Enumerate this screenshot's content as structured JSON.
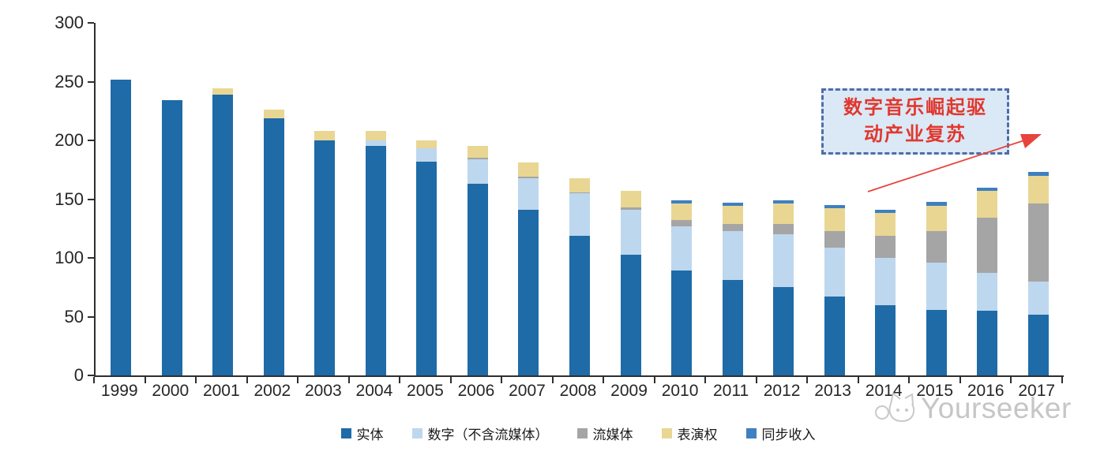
{
  "chart_data": {
    "type": "bar",
    "stacked": true,
    "title": "",
    "xlabel": "",
    "ylabel": "",
    "categories": [
      "1999",
      "2000",
      "2001",
      "2002",
      "2003",
      "2004",
      "2005",
      "2006",
      "2007",
      "2008",
      "2009",
      "2010",
      "2011",
      "2012",
      "2013",
      "2014",
      "2015",
      "2016",
      "2017"
    ],
    "series": [
      {
        "key": "physical",
        "name": "实体",
        "color": "#1E6BA8",
        "values": [
          252,
          234,
          239,
          219,
          200,
          195,
          182,
          163,
          141,
          119,
          103,
          89,
          81,
          75,
          67,
          60,
          56,
          55,
          52
        ]
      },
      {
        "key": "digital-excl-streaming",
        "name": "数字（不含流媒体）",
        "color": "#BDD7EE",
        "values": [
          0,
          0,
          0,
          0,
          0,
          5,
          11,
          21,
          27,
          36,
          38,
          38,
          42,
          45,
          42,
          40,
          40,
          32,
          28
        ]
      },
      {
        "key": "streaming",
        "name": "流媒体",
        "color": "#A5A5A5",
        "values": [
          0,
          0,
          0,
          0,
          0,
          0,
          0,
          1,
          1,
          1,
          2,
          5,
          6,
          9,
          14,
          19,
          27,
          47,
          66
        ]
      },
      {
        "key": "performance-rights",
        "name": "表演权",
        "color": "#E9D693",
        "values": [
          0,
          0,
          5,
          7,
          8,
          8,
          7,
          10,
          12,
          12,
          14,
          14,
          15,
          17,
          19,
          19,
          21,
          23,
          24
        ]
      },
      {
        "key": "sync-revenue",
        "name": "同步收入",
        "color": "#3E80C0",
        "values": [
          0,
          0,
          0,
          0,
          0,
          0,
          0,
          0,
          0,
          0,
          0,
          3,
          3,
          3,
          3,
          3,
          4,
          3,
          3
        ]
      }
    ],
    "ylim": [
      0,
      300
    ],
    "yticks": [
      0,
      50,
      100,
      150,
      200,
      250,
      300
    ],
    "grid": false,
    "legend_position": "bottom"
  },
  "annotation": {
    "line1": "数字音乐崛起驱",
    "line2": "动产业复苏"
  },
  "watermark": {
    "text": "Yourseeker",
    "icon": "cat-logo"
  },
  "colors": {
    "annotation_text": "#E0382D",
    "annotation_border": "#4C6FA8",
    "annotation_fill": "#DBE8F6",
    "arrow": "#E8433C",
    "axis": "#2E2E2E",
    "watermark": "#C6C6C6"
  }
}
